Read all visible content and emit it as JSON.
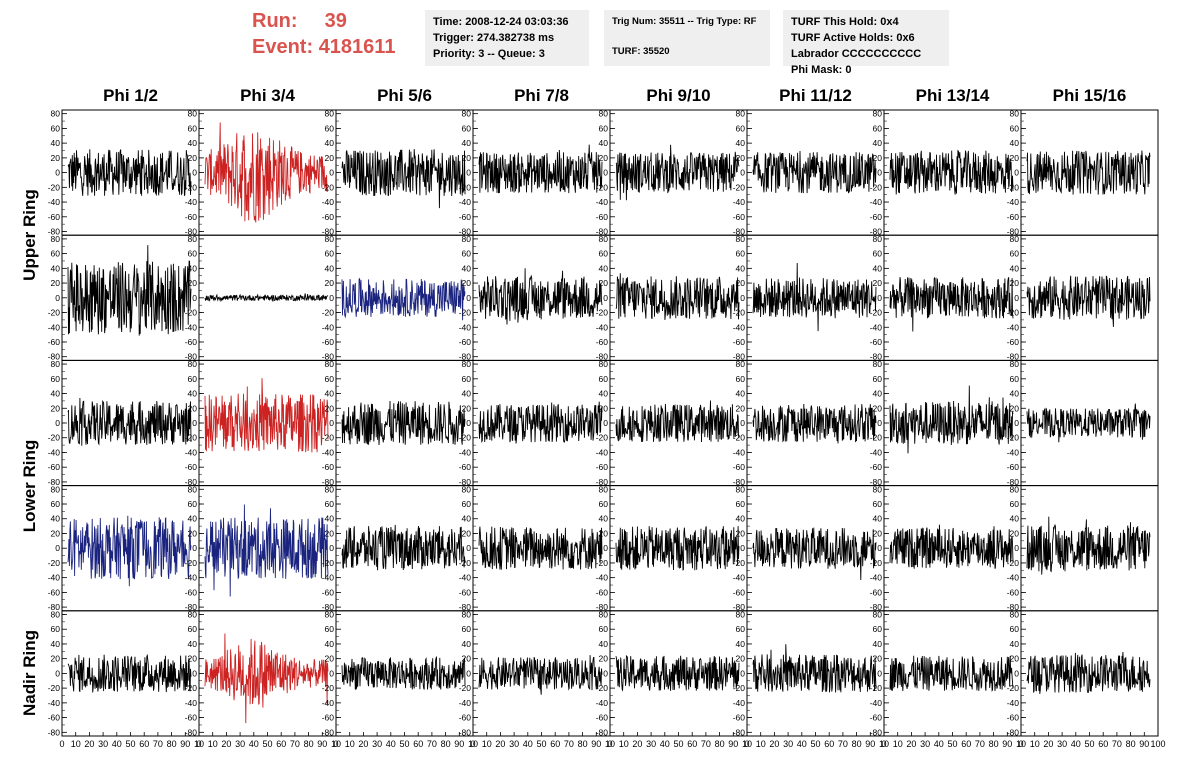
{
  "run_label": "Run:",
  "run_value": "39",
  "event_label": "Event:",
  "event_value": "4181611",
  "info_box_1": {
    "line1": "Time: 2008-12-24 03:03:36",
    "line2": "Trigger: 274.382738 ms",
    "line3": "Priority: 3 -- Queue: 3"
  },
  "info_box_2": {
    "line1": "Trig Num: 35511 -- Trig Type: RF",
    "line2": "TURF: 35520"
  },
  "info_box_3": {
    "line1": "TURF This Hold: 0x4",
    "line2": "TURF Active Holds: 0x6",
    "line3": "Labrador CCCCCCCCCC",
    "line4": "Phi Mask: 0"
  },
  "colors": {
    "run_text": "#d9534f",
    "trace_black": "#000000",
    "trace_red": "#cc2222",
    "trace_blue": "#1a237e"
  },
  "chart_data": {
    "type": "line",
    "columns": [
      "Phi 1/2",
      "Phi 3/4",
      "Phi 5/6",
      "Phi 7/8",
      "Phi 9/10",
      "Phi 11/12",
      "Phi 13/14",
      "Phi 15/16"
    ],
    "row_labels": [
      "Upper Ring",
      "Lower Ring",
      "Nadir Ring"
    ],
    "rows": 5,
    "ylim": [
      -85,
      85
    ],
    "yticks": [
      -80,
      -60,
      -40,
      -20,
      0,
      20,
      40,
      60,
      80
    ],
    "xlim": [
      0,
      100
    ],
    "xticks": [
      0,
      10,
      20,
      30,
      40,
      50,
      60,
      70,
      80,
      90,
      100
    ],
    "x_tick_labels_per_panel": [
      "0",
      "10",
      "20",
      "30",
      "40",
      "50",
      "60",
      "70",
      "80",
      "90",
      "10"
    ],
    "last_x_tick_label": "100",
    "panels": [
      [
        {
          "c": "black",
          "a": 32,
          "p": 0
        },
        {
          "c": "red",
          "a": 48,
          "p": 40
        },
        {
          "c": "black",
          "a": 32,
          "p": 0
        },
        {
          "c": "black",
          "a": 28,
          "p": 0
        },
        {
          "c": "black",
          "a": 28,
          "p": 0
        },
        {
          "c": "black",
          "a": 28,
          "p": 0
        },
        {
          "c": "black",
          "a": 30,
          "p": 0
        },
        {
          "c": "black",
          "a": 30,
          "p": 0
        }
      ],
      [
        {
          "c": "black",
          "a": 50,
          "p": 0
        },
        {
          "c": "black",
          "a": 4,
          "p": 0
        },
        {
          "c": "blue",
          "a": 26,
          "p": 0
        },
        {
          "c": "black",
          "a": 30,
          "p": 0
        },
        {
          "c": "black",
          "a": 30,
          "p": 0
        },
        {
          "c": "black",
          "a": 28,
          "p": 0
        },
        {
          "c": "black",
          "a": 28,
          "p": 0
        },
        {
          "c": "black",
          "a": 30,
          "p": 0
        }
      ],
      [
        {
          "c": "black",
          "a": 30,
          "p": 0
        },
        {
          "c": "red",
          "a": 40,
          "p": 0
        },
        {
          "c": "black",
          "a": 30,
          "p": 0
        },
        {
          "c": "black",
          "a": 26,
          "p": 0
        },
        {
          "c": "black",
          "a": 26,
          "p": 0
        },
        {
          "c": "black",
          "a": 26,
          "p": 0
        },
        {
          "c": "black",
          "a": 30,
          "p": 0
        },
        {
          "c": "black",
          "a": 20,
          "p": 0
        }
      ],
      [
        {
          "c": "blue",
          "a": 42,
          "p": 0
        },
        {
          "c": "blue",
          "a": 42,
          "p": 0
        },
        {
          "c": "black",
          "a": 30,
          "p": 0
        },
        {
          "c": "black",
          "a": 30,
          "p": 0
        },
        {
          "c": "black",
          "a": 30,
          "p": 0
        },
        {
          "c": "black",
          "a": 28,
          "p": 0
        },
        {
          "c": "black",
          "a": 28,
          "p": 0
        },
        {
          "c": "black",
          "a": 32,
          "p": 0
        }
      ],
      [
        {
          "c": "black",
          "a": 26,
          "p": 0
        },
        {
          "c": "red",
          "a": 34,
          "p": 40
        },
        {
          "c": "black",
          "a": 22,
          "p": 0
        },
        {
          "c": "black",
          "a": 22,
          "p": 0
        },
        {
          "c": "black",
          "a": 24,
          "p": 0
        },
        {
          "c": "black",
          "a": 26,
          "p": 0
        },
        {
          "c": "black",
          "a": 24,
          "p": 0
        },
        {
          "c": "black",
          "a": 26,
          "p": 0
        }
      ]
    ]
  }
}
